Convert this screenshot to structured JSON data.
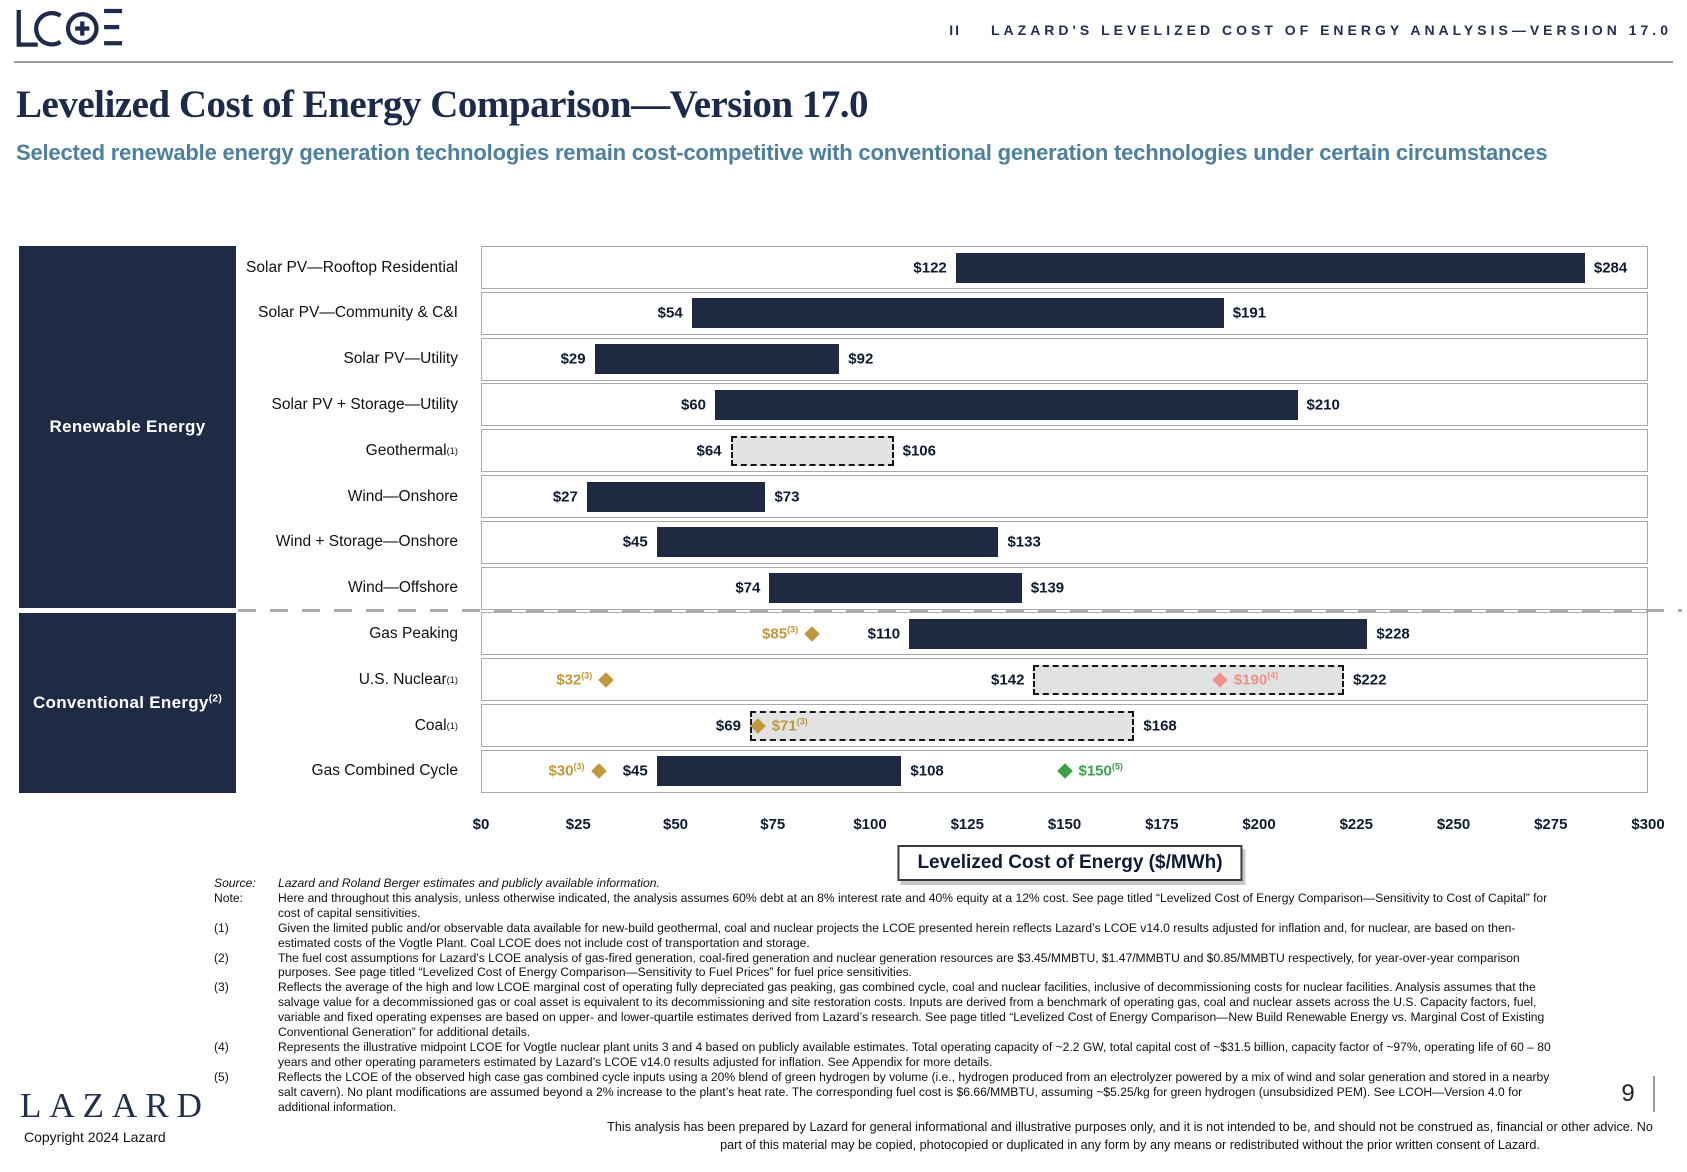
{
  "header": {
    "logo_name": "lcoe-logo",
    "section_number": "II",
    "banner": "LAZARD'S LEVELIZED COST OF ENERGY ANALYSIS—VERSION 17.0"
  },
  "title": "Levelized Cost of Energy Comparison—Version 17.0",
  "subtitle": "Selected renewable energy generation technologies remain cost-competitive with conventional generation technologies under certain circumstances",
  "chart_data": {
    "type": "bar",
    "orientation": "horizontal-range",
    "title": "Levelized Cost of Energy Comparison—Version 17.0",
    "xlabel": "Levelized Cost of Energy ($/MWh)",
    "xlim": [
      0,
      300
    ],
    "x_tick_labels": [
      "$0",
      "$25",
      "$50",
      "$75",
      "$100",
      "$125",
      "$150",
      "$175",
      "$200",
      "$225",
      "$250",
      "$275",
      "$300"
    ],
    "grid": false,
    "legend": "none",
    "group_labels": [
      {
        "label": "Renewable Energy",
        "sup": "",
        "row_count": 8
      },
      {
        "label": "Conventional Energy",
        "sup": "(2)",
        "row_count": 4
      }
    ],
    "colors": {
      "bar": "#1f2942",
      "estimate_fill": "#e0e3e1",
      "gold": "#c1973b",
      "salmon": "#ee9186",
      "green": "#3fa04c",
      "sidebar": "#1f2a44"
    },
    "rows": [
      {
        "category": "Solar PV—Rooftop Residential",
        "sup": "",
        "low": 122,
        "high": 284,
        "low_label": "$122",
        "high_label": "$284",
        "style": "solid",
        "markers": []
      },
      {
        "category": "Solar PV—Community & C&I",
        "sup": "",
        "low": 54,
        "high": 191,
        "low_label": "$54",
        "high_label": "$191",
        "style": "solid",
        "markers": []
      },
      {
        "category": "Solar PV—Utility",
        "sup": "",
        "low": 29,
        "high": 92,
        "low_label": "$29",
        "high_label": "$92",
        "style": "solid",
        "markers": []
      },
      {
        "category": "Solar PV + Storage—Utility",
        "sup": "",
        "low": 60,
        "high": 210,
        "low_label": "$60",
        "high_label": "$210",
        "style": "solid",
        "markers": []
      },
      {
        "category": "Geothermal",
        "sup": "(1)",
        "low": 64,
        "high": 106,
        "low_label": "$64",
        "high_label": "$106",
        "style": "estimate",
        "markers": []
      },
      {
        "category": "Wind—Onshore",
        "sup": "",
        "low": 27,
        "high": 73,
        "low_label": "$27",
        "high_label": "$73",
        "style": "solid",
        "markers": []
      },
      {
        "category": "Wind + Storage—Onshore",
        "sup": "",
        "low": 45,
        "high": 133,
        "low_label": "$45",
        "high_label": "$133",
        "style": "solid",
        "markers": []
      },
      {
        "category": "Wind—Offshore",
        "sup": "",
        "low": 74,
        "high": 139,
        "low_label": "$74",
        "high_label": "$139",
        "style": "solid",
        "markers": []
      },
      {
        "category": "Gas Peaking",
        "sup": "",
        "low": 110,
        "high": 228,
        "low_label": "$110",
        "high_label": "$228",
        "style": "solid",
        "markers": [
          {
            "value": 85,
            "label": "$85",
            "sup": "(3)",
            "color": "gold",
            "text_side": "left"
          }
        ]
      },
      {
        "category": "U.S. Nuclear",
        "sup": "(1)",
        "low": 142,
        "high": 222,
        "low_label": "$142",
        "high_label": "$222",
        "style": "estimate",
        "markers": [
          {
            "value": 32,
            "label": "$32",
            "sup": "(3)",
            "color": "gold",
            "text_side": "left"
          },
          {
            "value": 190,
            "label": "$190",
            "sup": "(4)",
            "color": "salmon",
            "text_side": "right"
          }
        ]
      },
      {
        "category": "Coal",
        "sup": "(1)",
        "low": 69,
        "high": 168,
        "low_label": "$69",
        "high_label": "$168",
        "style": "estimate",
        "markers": [
          {
            "value": 71,
            "label": "$71",
            "sup": "(3)",
            "color": "gold",
            "text_side": "right"
          }
        ]
      },
      {
        "category": "Gas Combined Cycle",
        "sup": "",
        "low": 45,
        "high": 108,
        "low_label": "$45",
        "high_label": "$108",
        "style": "solid",
        "markers": [
          {
            "value": 30,
            "label": "$30",
            "sup": "(3)",
            "color": "gold",
            "text_side": "left"
          },
          {
            "value": 150,
            "label": "$150",
            "sup": "(5)",
            "color": "green",
            "text_side": "right"
          }
        ]
      }
    ]
  },
  "notes": [
    {
      "label": "Source:",
      "italic": true,
      "text": "Lazard and Roland Berger estimates and publicly available information."
    },
    {
      "label": "Note:",
      "italic": false,
      "text": "Here and throughout this analysis, unless otherwise indicated, the analysis assumes 60% debt at an 8% interest rate and 40% equity at a 12% cost. See page titled “Levelized Cost of Energy Comparison—Sensitivity to Cost of Capital” for cost of capital sensitivities."
    },
    {
      "label": "(1)",
      "italic": false,
      "text": "Given the limited public and/or observable data available for new-build geothermal, coal and nuclear projects the LCOE presented herein reflects Lazard’s LCOE v14.0 results adjusted for inflation and, for nuclear, are based on then-estimated costs of the Vogtle Plant. Coal LCOE does not include cost of transportation and storage."
    },
    {
      "label": "(2)",
      "italic": false,
      "text": "The fuel cost assumptions for Lazard’s LCOE analysis of gas-fired generation, coal-fired generation and nuclear generation resources are $3.45/MMBTU, $1.47/MMBTU and $0.85/MMBTU respectively, for year-over-year comparison purposes. See page titled “Levelized Cost of Energy Comparison—Sensitivity to Fuel Prices” for fuel price sensitivities."
    },
    {
      "label": "(3)",
      "italic": false,
      "text": "Reflects the average of the high and low LCOE marginal cost of operating fully depreciated gas peaking, gas combined cycle, coal and nuclear facilities, inclusive of decommissioning costs for nuclear facilities. Analysis assumes that the salvage value for a decommissioned gas or coal asset is equivalent to its decommissioning and site restoration costs. Inputs are derived from a benchmark of operating gas, coal and nuclear assets across the U.S. Capacity factors, fuel, variable and fixed operating expenses are based on upper- and lower-quartile estimates derived from Lazard’s research. See page titled “Levelized Cost of Energy Comparison—New Build Renewable Energy vs. Marginal Cost of Existing Conventional Generation” for additional details."
    },
    {
      "label": "(4)",
      "italic": false,
      "text": "Represents the illustrative midpoint LCOE for Vogtle nuclear plant units 3 and 4 based on publicly available estimates. Total operating capacity of ~2.2 GW, total capital cost of ~$31.5 billion, capacity factor of ~97%, operating life of 60 – 80 years and other operating parameters estimated by Lazard’s LCOE v14.0 results adjusted for inflation. See Appendix for more details."
    },
    {
      "label": "(5)",
      "italic": false,
      "text": "Reflects the LCOE of the observed high case gas combined cycle inputs using a 20% blend of green hydrogen by volume (i.e., hydrogen produced from an electrolyzer powered by a mix of wind and solar generation and stored in a nearby salt cavern). No plant modifications are assumed beyond a 2% increase to the plant’s heat rate. The corresponding fuel cost is $6.66/MMBTU, assuming ~$5.25/kg for green hydrogen (unsubsidized PEM). See LCOH—Version 4.0 for additional information."
    }
  ],
  "footer": {
    "brand": "LAZARD",
    "copyright": "Copyright 2024 Lazard",
    "disclaimer": "This analysis has been prepared by Lazard for general informational and illustrative purposes only, and it is not intended to be, and should not be construed as, financial or other advice. No part of this material may be copied, photocopied or duplicated in any form by any means or redistributed without the prior written consent of Lazard.",
    "page_number": "9"
  }
}
